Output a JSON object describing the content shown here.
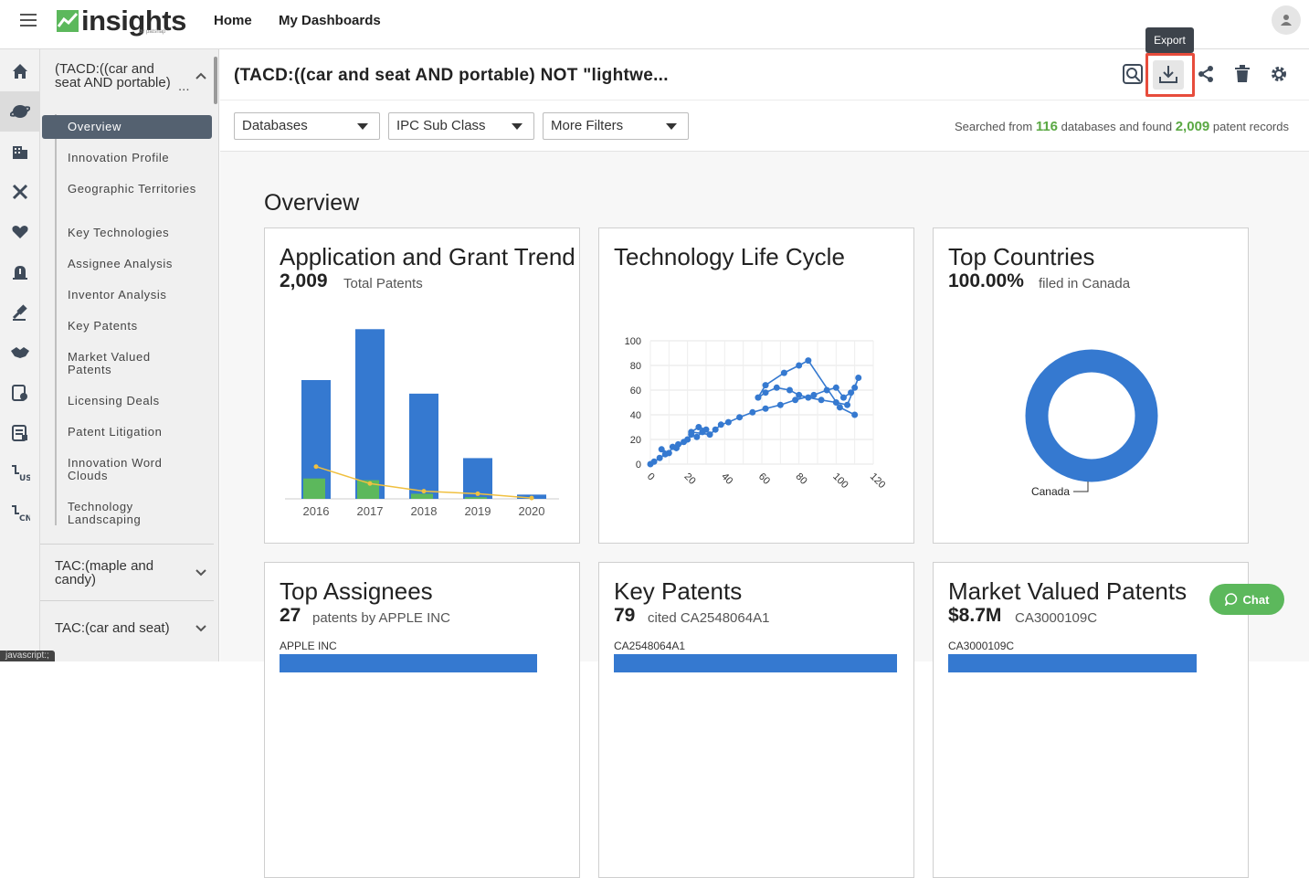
{
  "header": {
    "logo_text": "insights",
    "logo_sub": "by patsnap",
    "nav": [
      "Home",
      "My Dashboards"
    ]
  },
  "sidebar": {
    "query_title": "(TACD:((car and seat AND portable)",
    "query_more": "...",
    "items": [
      {
        "label": "Overview",
        "active": true
      },
      {
        "label": "Innovation Profile"
      },
      {
        "label": "Geographic Territories"
      },
      {
        "label": "Key Technologies"
      },
      {
        "label": "Assignee Analysis"
      },
      {
        "label": "Inventor Analysis"
      },
      {
        "label": "Key Patents"
      },
      {
        "label": "Market Valued Patents"
      },
      {
        "label": "Licensing Deals"
      },
      {
        "label": "Patent Litigation"
      },
      {
        "label": "Innovation Word Clouds"
      },
      {
        "label": "Technology Landscaping"
      }
    ],
    "groups": [
      "TAC:(maple and candy)",
      "TAC:(car and seat)"
    ]
  },
  "titlebar": {
    "title": "(TACD:((car and seat AND portable) NOT \"lightwe...",
    "tooltip": "Export"
  },
  "filters": {
    "databases": "Databases",
    "ipc": "IPC Sub Class",
    "more": "More Filters",
    "summary_prefix": "Searched from",
    "db_count": "116",
    "summary_mid": "databases and found",
    "record_count": "2,009",
    "summary_suffix": "patent records"
  },
  "overview": {
    "title": "Overview",
    "cards": [
      {
        "title": "Application and Grant Trend",
        "number": "2,009",
        "sub": "Total Patents"
      },
      {
        "title": "Technology Life Cycle"
      },
      {
        "title": "Top Countries",
        "number": "100.00%",
        "sub": "filed in Canada"
      },
      {
        "title": "Top Assignees",
        "number": "27",
        "sub": "patents by APPLE INC",
        "bar_label": "APPLE INC"
      },
      {
        "title": "Key Patents",
        "number": "79",
        "sub": "cited CA2548064A1",
        "bar_label": "CA2548064A1"
      },
      {
        "title": "Market Valued Patents",
        "number": "$8.7M",
        "sub": "CA3000109C",
        "bar_label": "CA3000109C"
      }
    ]
  },
  "chart_data": [
    {
      "type": "bar",
      "categories": [
        "2016",
        "2017",
        "2018",
        "2019",
        "2020"
      ],
      "series": [
        {
          "values": [
            700,
            1000,
            620,
            240,
            25
          ],
          "color": "#3579d0"
        },
        {
          "values": [
            120,
            110,
            30,
            10,
            0
          ],
          "color": "#5cb85c"
        },
        {
          "type": "line",
          "values": [
            190,
            90,
            45,
            30,
            5
          ],
          "color": "#f0c040"
        }
      ],
      "ylim": [
        0,
        1050
      ]
    },
    {
      "type": "line",
      "xlim": [
        0,
        120
      ],
      "ylim": [
        0,
        100
      ],
      "x_ticks": [
        0,
        20,
        40,
        60,
        80,
        100,
        120
      ],
      "y_ticks": [
        0,
        20,
        40,
        60,
        80,
        100
      ],
      "grid": true,
      "points": [
        [
          0,
          0
        ],
        [
          2,
          2
        ],
        [
          5,
          5
        ],
        [
          8,
          8
        ],
        [
          6,
          12
        ],
        [
          10,
          9
        ],
        [
          12,
          14
        ],
        [
          15,
          16
        ],
        [
          18,
          18
        ],
        [
          14,
          13
        ],
        [
          20,
          20
        ],
        [
          22,
          24
        ],
        [
          25,
          22
        ],
        [
          28,
          26
        ],
        [
          30,
          28
        ],
        [
          26,
          30
        ],
        [
          22,
          26
        ],
        [
          32,
          24
        ],
        [
          35,
          28
        ],
        [
          38,
          32
        ],
        [
          42,
          34
        ],
        [
          48,
          38
        ],
        [
          55,
          42
        ],
        [
          62,
          45
        ],
        [
          70,
          48
        ],
        [
          78,
          52
        ],
        [
          88,
          56
        ],
        [
          95,
          60
        ],
        [
          100,
          62
        ],
        [
          104,
          54
        ],
        [
          108,
          58
        ],
        [
          110,
          62
        ],
        [
          112,
          70
        ],
        [
          106,
          48
        ],
        [
          100,
          50
        ],
        [
          92,
          52
        ],
        [
          85,
          54
        ],
        [
          80,
          56
        ],
        [
          75,
          60
        ],
        [
          68,
          62
        ],
        [
          62,
          58
        ],
        [
          58,
          54
        ],
        [
          62,
          64
        ],
        [
          72,
          74
        ],
        [
          80,
          80
        ],
        [
          85,
          84
        ],
        [
          102,
          46
        ],
        [
          110,
          40
        ]
      ],
      "color": "#3579d0"
    },
    {
      "type": "pie",
      "labels": [
        "Canada"
      ],
      "values": [
        100
      ],
      "colors": [
        "#3579d0"
      ]
    }
  ],
  "icons": {
    "side": [
      "home-icon",
      "globe-icon",
      "building-icon",
      "tools-icon",
      "heart-icon",
      "alert-icon",
      "gavel-icon",
      "handshake-icon",
      "doc-settings-icon",
      "doc-list-icon",
      "us-flag-icon",
      "cn-flag-icon"
    ]
  },
  "chat_label": "Chat",
  "status_text": "javascript:;"
}
